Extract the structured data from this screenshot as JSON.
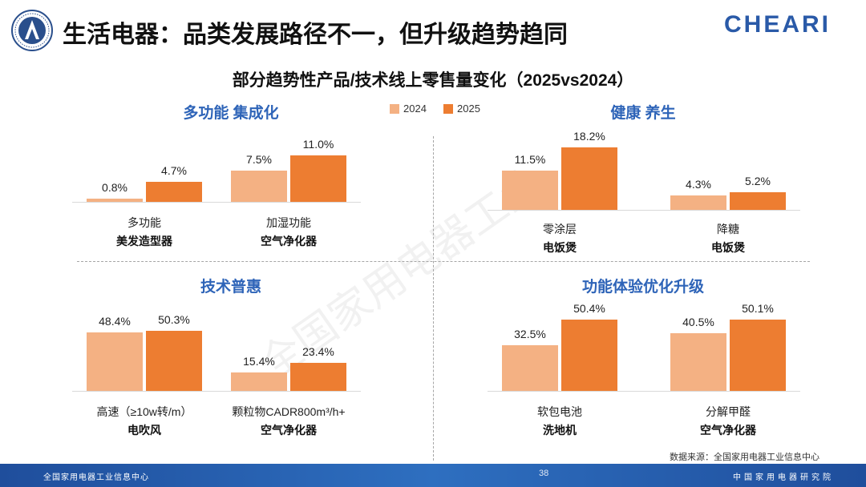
{
  "header": {
    "title": "生活电器：品类发展路径不一，但升级趋势趋同",
    "brand": "CHEARI",
    "logo_name": "China Household Electrical Appliances Research Institute emblem"
  },
  "chart_title": "部分趋势性产品/技术线上零售量变化（2025vs2024）",
  "legend": {
    "y2024": "2024",
    "y2025": "2025"
  },
  "colors": {
    "y2024": "#f4b183",
    "y2025": "#ed7d31",
    "title_blue": "#2e64b8"
  },
  "watermark": "全国家用电器工业",
  "chart_data": [
    {
      "type": "bar",
      "title": "多功能 集成化",
      "categories": [
        {
          "feature": "多功能",
          "product": "美发造型器"
        },
        {
          "feature": "加湿功能",
          "product": "空气净化器"
        }
      ],
      "series": [
        {
          "name": "2024",
          "values": [
            0.8,
            7.5
          ],
          "labels": [
            "0.8%",
            "7.5%"
          ]
        },
        {
          "name": "2025",
          "values": [
            4.7,
            11.0
          ],
          "labels": [
            "4.7%",
            "11.0%"
          ]
        }
      ],
      "ylim": [
        0,
        20
      ]
    },
    {
      "type": "bar",
      "title": "健康 养生",
      "categories": [
        {
          "feature": "零涂层",
          "product": "电饭煲"
        },
        {
          "feature": "降糖",
          "product": "电饭煲"
        }
      ],
      "series": [
        {
          "name": "2024",
          "values": [
            11.5,
            4.3
          ],
          "labels": [
            "11.5%",
            "4.3%"
          ]
        },
        {
          "name": "2025",
          "values": [
            18.2,
            5.2
          ],
          "labels": [
            "18.2%",
            "5.2%"
          ]
        }
      ],
      "ylim": [
        0,
        20
      ]
    },
    {
      "type": "bar",
      "title": "技术普惠",
      "categories": [
        {
          "feature": "高速（≥10w转/m）",
          "product": "电吹风"
        },
        {
          "feature": "颗粒物CADR800m³/h+",
          "product": "空气净化器"
        }
      ],
      "series": [
        {
          "name": "2024",
          "values": [
            48.4,
            15.4
          ],
          "labels": [
            "48.4%",
            "15.4%"
          ]
        },
        {
          "name": "2025",
          "values": [
            50.3,
            23.4
          ],
          "labels": [
            "50.3%",
            "23.4%"
          ]
        }
      ],
      "ylim": [
        0,
        60
      ]
    },
    {
      "type": "bar",
      "title": "功能体验优化升级",
      "categories": [
        {
          "feature": "软包电池",
          "product": "洗地机"
        },
        {
          "feature": "分解甲醛",
          "product": "空气净化器"
        }
      ],
      "series": [
        {
          "name": "2024",
          "values": [
            32.5,
            40.5
          ],
          "labels": [
            "32.5%",
            "40.5%"
          ]
        },
        {
          "name": "2025",
          "values": [
            50.4,
            50.1
          ],
          "labels": [
            "50.4%",
            "50.1%"
          ]
        }
      ],
      "ylim": [
        0,
        60
      ]
    }
  ],
  "source": "数据来源：全国家用电器工业信息中心",
  "footer": {
    "left": "全国家用电器工业信息中心",
    "page": "38",
    "right": "中国家用电器研究院"
  }
}
